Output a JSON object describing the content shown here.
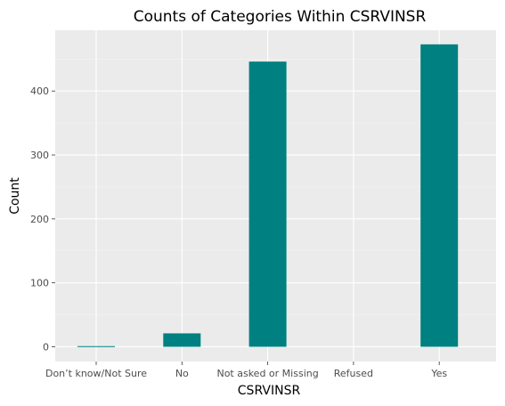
{
  "chart_data": {
    "type": "bar",
    "title": "Counts of Categories Within CSRVINSR",
    "xlabel": "CSRVINSR",
    "ylabel": "Count",
    "categories": [
      "Don’t know/Not Sure",
      "No",
      "Not asked or Missing",
      "Refused",
      "Yes"
    ],
    "values": [
      1,
      21,
      446,
      0,
      473
    ],
    "yticks": [
      0,
      100,
      200,
      300,
      400
    ],
    "ylim": [
      -23,
      495
    ],
    "grid": true,
    "bar_color": "#008080",
    "panel_background": "#ebebeb"
  }
}
